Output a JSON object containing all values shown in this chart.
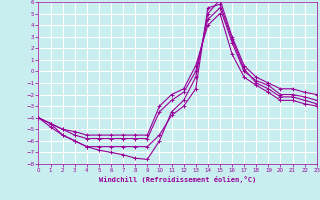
{
  "xlabel": "Windchill (Refroidissement éolien,°C)",
  "bg_color": "#c8eef0",
  "line_color": "#990099",
  "grid_color": "#ffffff",
  "xlim": [
    0,
    23
  ],
  "ylim": [
    -8,
    6
  ],
  "xticks": [
    0,
    1,
    2,
    3,
    4,
    5,
    6,
    7,
    8,
    9,
    10,
    11,
    12,
    13,
    14,
    15,
    16,
    17,
    18,
    19,
    20,
    21,
    22,
    23
  ],
  "yticks": [
    -8,
    -7,
    -6,
    -5,
    -4,
    -3,
    -2,
    -1,
    0,
    1,
    2,
    3,
    4,
    5,
    6
  ],
  "lines": [
    [
      -4.0,
      -4.5,
      -5.5,
      -6.0,
      -6.5,
      -6.8,
      -7.0,
      -7.2,
      -7.5,
      -7.6,
      -6.0,
      -3.5,
      -2.5,
      -0.5,
      5.0,
      6.2,
      3.0,
      0.5,
      -0.5,
      -1.0,
      -1.5,
      -1.5,
      -1.8,
      -2.0
    ],
    [
      -4.0,
      -4.5,
      -5.0,
      -5.5,
      -5.8,
      -5.8,
      -5.8,
      -5.8,
      -5.8,
      -5.8,
      -3.5,
      -2.5,
      -1.8,
      0.0,
      4.5,
      5.5,
      2.5,
      0.0,
      -0.8,
      -1.2,
      -2.0,
      -2.0,
      -2.2,
      -2.5
    ],
    [
      -4.0,
      -4.5,
      -5.0,
      -5.2,
      -5.5,
      -5.5,
      -5.5,
      -5.5,
      -5.5,
      -5.5,
      -3.0,
      -2.0,
      -1.5,
      0.5,
      4.0,
      5.0,
      1.5,
      -0.5,
      -1.2,
      -1.8,
      -2.5,
      -2.5,
      -2.8,
      -3.0
    ],
    [
      -4.0,
      -4.8,
      -5.5,
      -6.0,
      -6.5,
      -6.5,
      -6.5,
      -6.5,
      -6.5,
      -6.5,
      -5.5,
      -3.8,
      -3.0,
      -1.5,
      5.5,
      5.8,
      2.8,
      0.2,
      -1.0,
      -1.5,
      -2.2,
      -2.2,
      -2.5,
      -2.8
    ]
  ]
}
